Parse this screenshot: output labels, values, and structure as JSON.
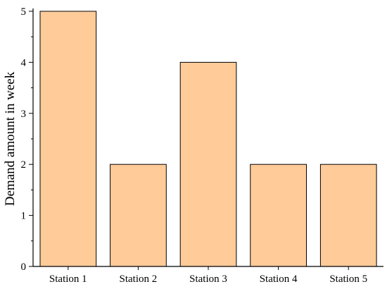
{
  "chart_data": {
    "type": "bar",
    "title": "",
    "xlabel": "",
    "ylabel": "Demand amount in week",
    "categories": [
      "Station 1",
      "Station 2",
      "Station 3",
      "Station 4",
      "Station 5"
    ],
    "values": [
      5,
      2,
      4,
      2,
      2
    ],
    "ylim": [
      0,
      5
    ],
    "yticks": [
      "0",
      "1",
      "2",
      "3",
      "4",
      "5"
    ],
    "grid": false,
    "legend": "none",
    "colors": {
      "bar_fill": "#FFCC99",
      "bar_stroke": "#000000",
      "axis": "#000000"
    }
  }
}
